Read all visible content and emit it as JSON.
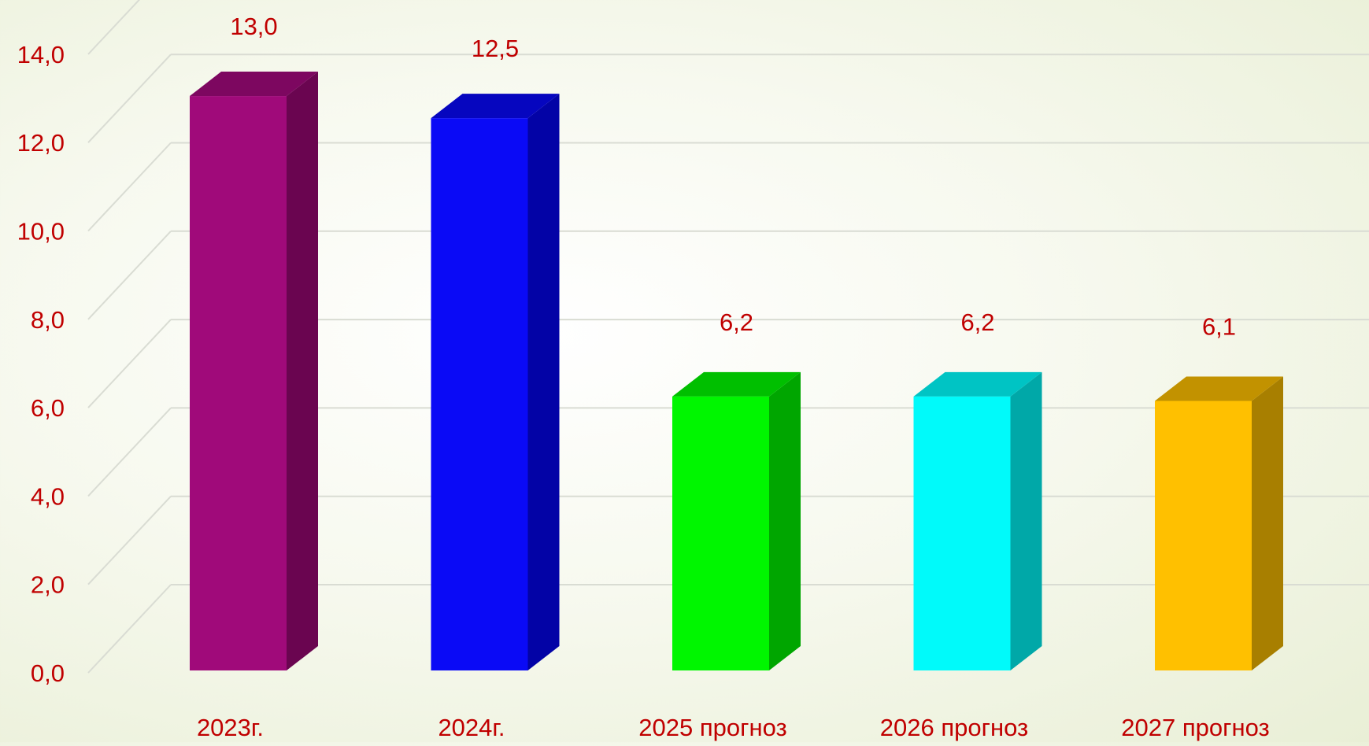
{
  "chart_data": {
    "type": "bar",
    "categories": [
      "2023г.",
      "2024г.",
      "2025 прогноз",
      "2026 прогноз",
      "2027 прогноз"
    ],
    "values": [
      13.0,
      12.5,
      6.2,
      6.2,
      6.1
    ],
    "value_labels": [
      "13,0",
      "12,5",
      "6,2",
      "6,2",
      "6,1"
    ],
    "ylim": [
      0,
      14
    ],
    "y_ticks": [
      "0,0",
      "2,0",
      "4,0",
      "6,0",
      "8,0",
      "10,0",
      "12,0",
      "14,0"
    ],
    "title": "",
    "xlabel": "",
    "ylabel": "",
    "grid": true,
    "three_d": true,
    "colors": {
      "bars": [
        "#a00a7a",
        "#0a0af6",
        "#00f600",
        "#00fafa",
        "#ffc000"
      ],
      "bar_sides": [
        "#6a0550",
        "#0303a6",
        "#00a600",
        "#00a8a8",
        "#a87f00"
      ],
      "bar_tops": [
        "#7d0760",
        "#0606bf",
        "#00bf00",
        "#00c4c4",
        "#c29200"
      ],
      "text": "#c00000",
      "grid": "#d9dcd3"
    }
  }
}
